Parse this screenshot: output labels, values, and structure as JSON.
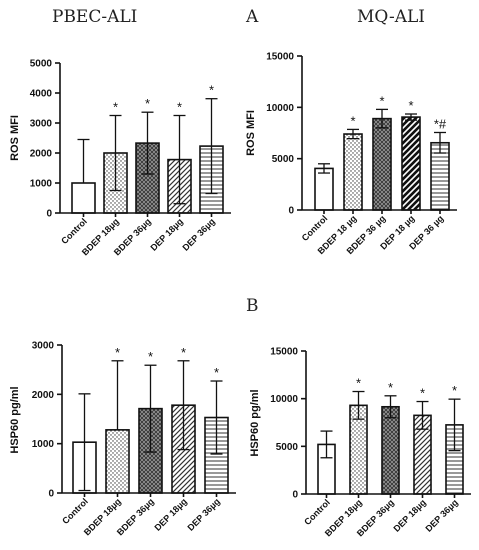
{
  "headings": {
    "left": "PBEC-ALI",
    "right": "MQ-ALI",
    "panel_a": "A",
    "panel_b": "B"
  },
  "chart_data": [
    {
      "id": "pbec-ros",
      "type": "bar",
      "ylabel": "ROS MFI",
      "ylim": [
        0,
        5000
      ],
      "yticks": [
        0,
        1000,
        2000,
        3000,
        4000,
        5000
      ],
      "categories": [
        "Control",
        "BDEP 18µg",
        "BDEP 36µg",
        "DEP 18µg",
        "DEP 36µg"
      ],
      "values": [
        1000,
        2000,
        2330,
        1780,
        2230
      ],
      "errors": [
        1450,
        1250,
        1030,
        1470,
        1580
      ],
      "annotations": [
        "",
        "*",
        "*",
        "*",
        "*"
      ],
      "patterns": [
        "blank",
        "dots",
        "crosshatch",
        "diagonal",
        "horizontal"
      ],
      "grid": false
    },
    {
      "id": "mq-ros",
      "type": "bar",
      "ylabel": "ROS MFI",
      "ylim": [
        0,
        15000
      ],
      "yticks": [
        0,
        5000,
        10000,
        15000
      ],
      "categories": [
        "Control",
        "BDEP 18 µg",
        "BDEP 36 µg",
        "DEP 18 µg",
        "DEP 36 µg"
      ],
      "values": [
        4050,
        7400,
        8900,
        9050,
        6550
      ],
      "errors": [
        450,
        450,
        900,
        300,
        1000
      ],
      "annotations": [
        "",
        "*",
        "*",
        "*",
        "*#"
      ],
      "patterns": [
        "blank",
        "dots",
        "crosshatch",
        "heavy-diagonal",
        "horizontal"
      ],
      "grid": false
    },
    {
      "id": "pbec-hsp60",
      "type": "bar",
      "ylabel": "HSP60 pg/ml",
      "ylim": [
        0,
        3000
      ],
      "yticks": [
        0,
        1000,
        2000,
        3000
      ],
      "categories": [
        "Control",
        "BDEP 18µg",
        "BDEP 36µg",
        "DEP 18µg",
        "DEP 36µg"
      ],
      "values": [
        1030,
        1280,
        1710,
        1780,
        1530
      ],
      "errors": [
        980,
        1400,
        880,
        900,
        740
      ],
      "annotations": [
        "",
        "*",
        "*",
        "*",
        "*"
      ],
      "patterns": [
        "blank",
        "dots",
        "crosshatch",
        "diagonal",
        "horizontal"
      ],
      "grid": false
    },
    {
      "id": "mq-hsp60",
      "type": "bar",
      "ylabel": "HSP60 pg/ml",
      "ylim": [
        0,
        15000
      ],
      "yticks": [
        0,
        5000,
        10000,
        15000
      ],
      "categories": [
        "Control",
        "BDEP 18µg",
        "BDEP 36µg",
        "DEP 18µg",
        "DEP 36µg"
      ],
      "values": [
        5200,
        9300,
        9150,
        8250,
        7250
      ],
      "errors": [
        1400,
        1450,
        1150,
        1450,
        2700
      ],
      "annotations": [
        "",
        "*",
        "*",
        "*",
        "*"
      ],
      "patterns": [
        "blank",
        "dots",
        "crosshatch",
        "diagonal",
        "horizontal"
      ],
      "grid": false
    }
  ]
}
